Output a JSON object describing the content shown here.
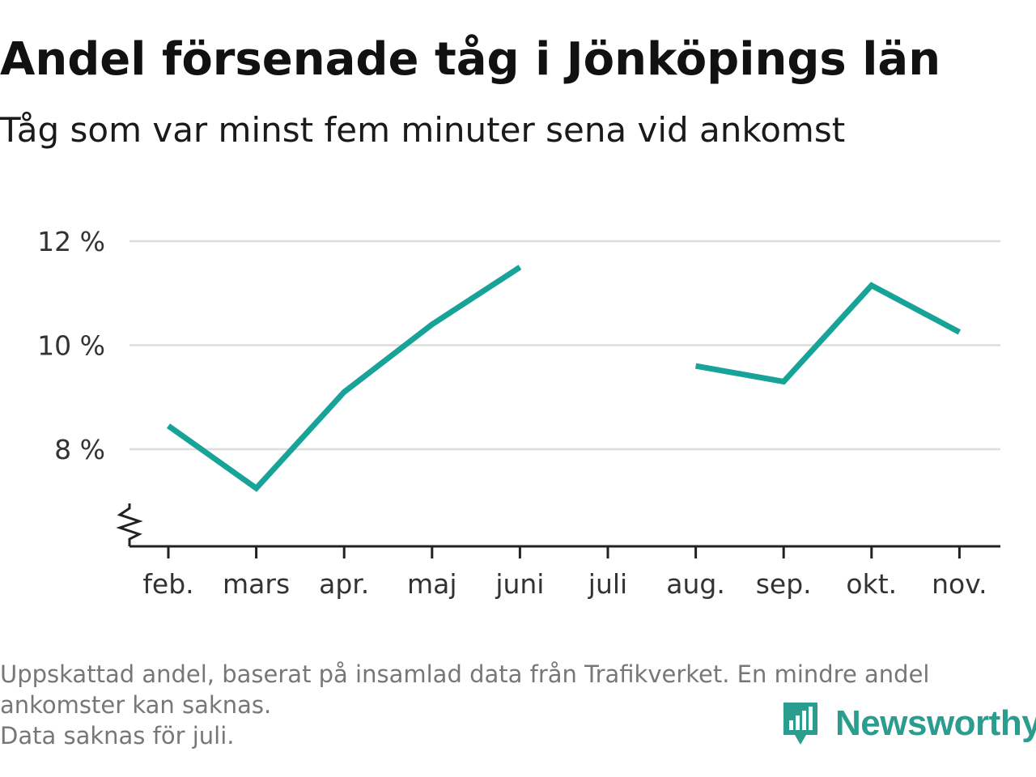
{
  "header": {
    "title": "Andel försenade tåg i Jönköpings län",
    "subtitle": "Tåg som var minst fem minuter sena vid ankomst"
  },
  "chart_data": {
    "type": "line",
    "title": "Andel försenade tåg i Jönköpings län",
    "subtitle": "Tåg som var minst fem minuter sena vid ankomst",
    "xlabel": "",
    "ylabel": "",
    "categories": [
      "feb.",
      "mars",
      "apr.",
      "maj",
      "juni",
      "juli",
      "aug.",
      "sep.",
      "okt.",
      "nov."
    ],
    "series": [
      {
        "values": [
          8.45,
          7.25,
          9.1,
          10.4,
          11.5,
          null,
          9.6,
          9.3,
          11.15,
          10.25
        ]
      }
    ],
    "yticks": [
      {
        "value": 8,
        "label": "8 %"
      },
      {
        "value": 10,
        "label": "10 %"
      },
      {
        "value": 12,
        "label": "12 %"
      }
    ],
    "y_axis_broken": true,
    "grid": "horizontal",
    "line_color": "#17a398",
    "grid_color": "#dddddd",
    "axis_color": "#222222"
  },
  "footer": {
    "note_lines": [
      "Uppskattad andel, baserat på insamlad data från Trafikverket. En mindre andel",
      "ankomster kan saknas.",
      "Data saknas för juli."
    ],
    "brand": "Newsworthy",
    "brand_color": "#2a9d8f"
  }
}
